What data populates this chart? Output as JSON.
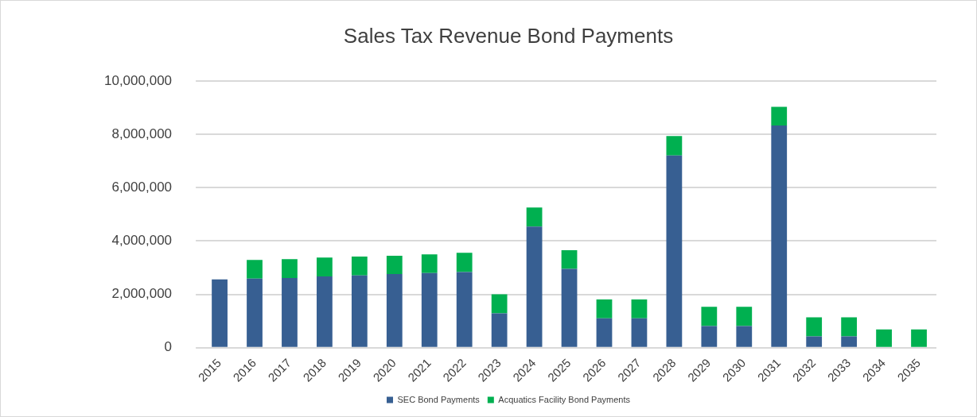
{
  "chart_data": {
    "type": "bar",
    "title": "Sales Tax Revenue Bond Payments",
    "stacked": true,
    "grid": "y",
    "legend": "bottom",
    "categories": [
      "2015",
      "2016",
      "2017",
      "2018",
      "2019",
      "2020",
      "2021",
      "2022",
      "2023",
      "2024",
      "2025",
      "2026",
      "2027",
      "2028",
      "2029",
      "2030",
      "2031",
      "2032",
      "2033",
      "2034",
      "2035"
    ],
    "series": [
      {
        "name": "SEC Bond Payments",
        "color": "#375f92",
        "values": [
          2560000,
          2590000,
          2610000,
          2670000,
          2710000,
          2760000,
          2800000,
          2840000,
          1290000,
          4540000,
          2960000,
          1100000,
          1100000,
          7210000,
          810000,
          810000,
          8340000,
          420000,
          420000,
          0,
          0
        ]
      },
      {
        "name": "Acquatics Facility Bond Payments",
        "color": "#00b050",
        "values": [
          0,
          700000,
          710000,
          710000,
          710000,
          690000,
          700000,
          720000,
          710000,
          720000,
          700000,
          710000,
          710000,
          730000,
          720000,
          720000,
          700000,
          720000,
          720000,
          680000,
          680000
        ]
      }
    ],
    "ylim": [
      0,
      10000000
    ],
    "yticks": [
      0,
      {
        "value": 2000000,
        "label": "2,000,000"
      },
      {
        "value": 4000000,
        "label": "4,000,000"
      },
      {
        "value": 6000000,
        "label": "6,000,000"
      },
      {
        "value": 8000000,
        "label": "8,000,000"
      },
      {
        "value": 10000000,
        "label": "10,000,000"
      }
    ]
  }
}
